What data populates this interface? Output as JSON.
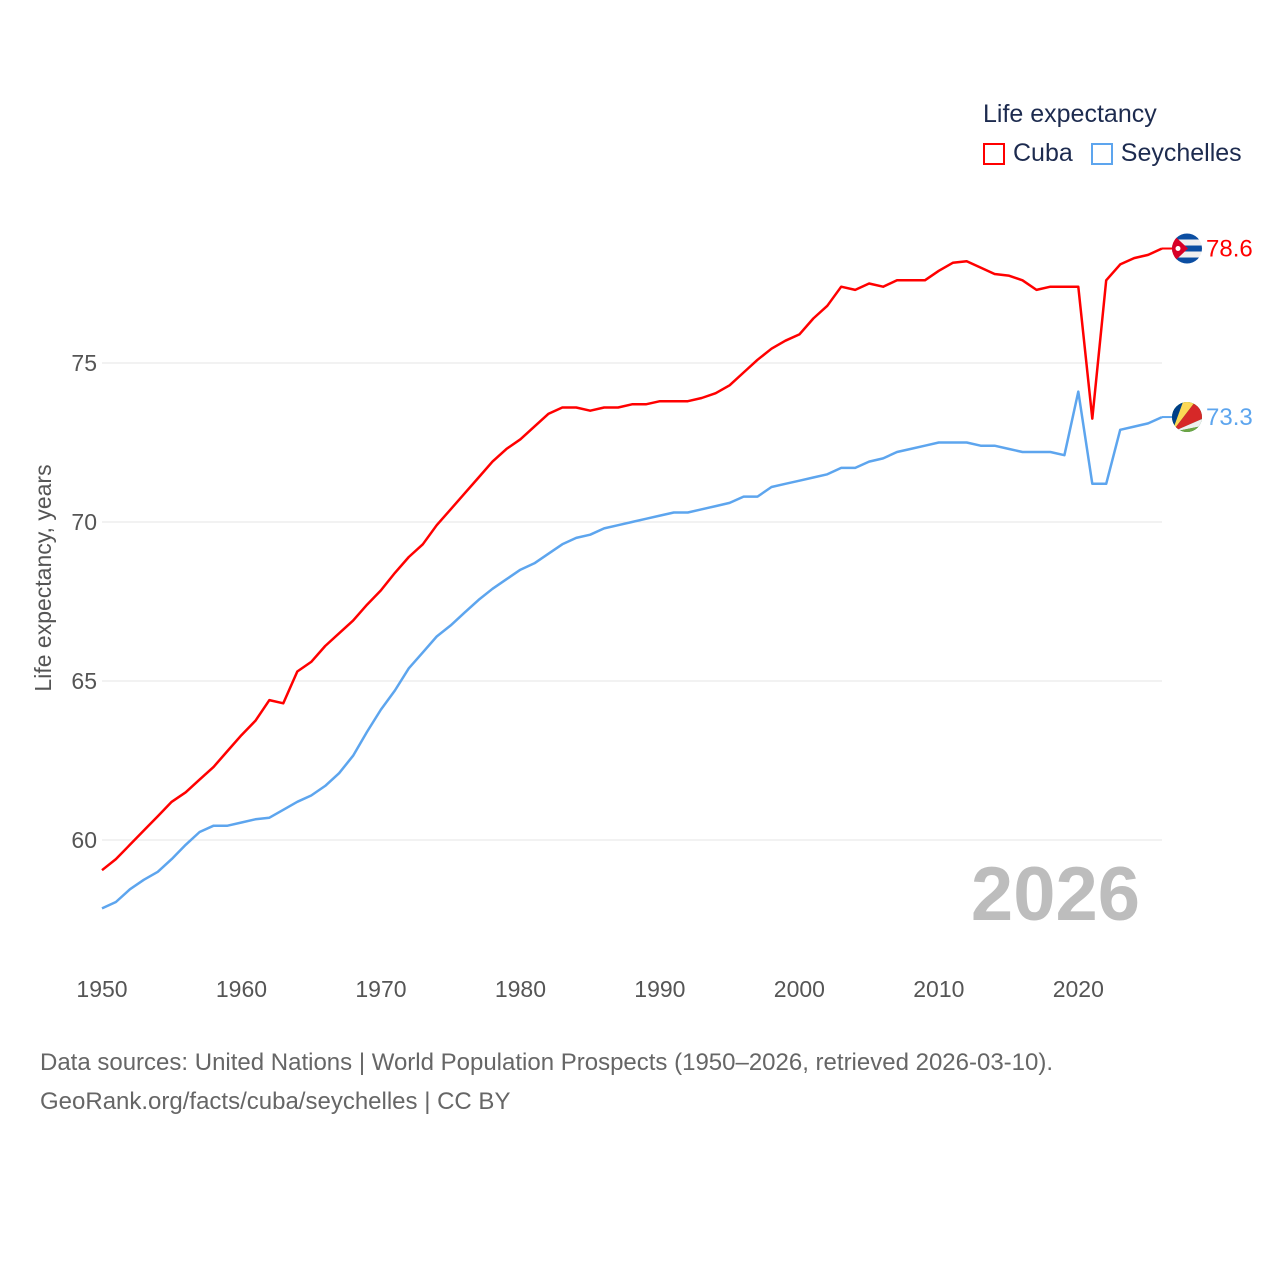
{
  "chart_data": {
    "type": "line",
    "title": "Life expectancy",
    "xlabel": "",
    "ylabel": "Life expectancy, years",
    "xlim": [
      1950,
      2026
    ],
    "ylim": [
      56.5,
      80
    ],
    "x_ticks": [
      1950,
      1960,
      1970,
      1980,
      1990,
      2000,
      2010,
      2020
    ],
    "y_ticks": [
      60,
      65,
      70,
      75
    ],
    "grid": true,
    "legend_position": "top-right",
    "year_label": "2026",
    "x": [
      1950,
      1951,
      1952,
      1953,
      1954,
      1955,
      1956,
      1957,
      1958,
      1959,
      1960,
      1961,
      1962,
      1963,
      1964,
      1965,
      1966,
      1967,
      1968,
      1969,
      1970,
      1971,
      1972,
      1973,
      1974,
      1975,
      1976,
      1977,
      1978,
      1979,
      1980,
      1981,
      1982,
      1983,
      1984,
      1985,
      1986,
      1987,
      1988,
      1989,
      1990,
      1991,
      1992,
      1993,
      1994,
      1995,
      1996,
      1997,
      1998,
      1999,
      2000,
      2001,
      2002,
      2003,
      2004,
      2005,
      2006,
      2007,
      2008,
      2009,
      2010,
      2011,
      2012,
      2013,
      2014,
      2015,
      2016,
      2017,
      2018,
      2019,
      2020,
      2021,
      2022,
      2023,
      2024,
      2025,
      2026
    ],
    "series": [
      {
        "name": "Cuba",
        "color": "#ff0000",
        "end_label": "78.6",
        "values": [
          59.05,
          59.4,
          59.85,
          60.3,
          60.75,
          61.2,
          61.5,
          61.9,
          62.3,
          62.8,
          63.3,
          63.75,
          64.4,
          64.3,
          65.3,
          65.6,
          66.1,
          66.5,
          66.9,
          67.4,
          67.85,
          68.4,
          68.9,
          69.3,
          69.9,
          70.4,
          70.9,
          71.4,
          71.9,
          72.3,
          72.6,
          73.0,
          73.4,
          73.6,
          73.6,
          73.5,
          73.6,
          73.6,
          73.7,
          73.7,
          73.8,
          73.8,
          73.8,
          73.9,
          74.05,
          74.3,
          74.7,
          75.1,
          75.45,
          75.7,
          75.9,
          76.4,
          76.8,
          77.4,
          77.3,
          77.5,
          77.4,
          77.6,
          77.6,
          77.6,
          77.9,
          78.15,
          78.2,
          78.0,
          77.8,
          77.75,
          77.6,
          77.3,
          77.4,
          77.4,
          77.4,
          73.25,
          77.6,
          78.1,
          78.3,
          78.4,
          78.6
        ]
      },
      {
        "name": "Seychelles",
        "color": "#5da5ee",
        "end_label": "73.3",
        "values": [
          57.85,
          58.05,
          58.45,
          58.75,
          59.0,
          59.4,
          59.85,
          60.25,
          60.45,
          60.45,
          60.55,
          60.65,
          60.7,
          60.95,
          61.2,
          61.4,
          61.7,
          62.1,
          62.65,
          63.4,
          64.1,
          64.7,
          65.4,
          65.9,
          66.4,
          66.75,
          67.15,
          67.55,
          67.9,
          68.2,
          68.5,
          68.7,
          69.0,
          69.3,
          69.5,
          69.6,
          69.8,
          69.9,
          70.0,
          70.1,
          70.2,
          70.3,
          70.3,
          70.4,
          70.5,
          70.6,
          70.8,
          70.8,
          71.1,
          71.2,
          71.3,
          71.4,
          71.5,
          71.7,
          71.7,
          71.9,
          72.0,
          72.2,
          72.3,
          72.4,
          72.5,
          72.5,
          72.5,
          72.4,
          72.4,
          72.3,
          72.2,
          72.2,
          72.2,
          72.1,
          74.1,
          71.2,
          71.2,
          72.9,
          73.0,
          73.1,
          73.3
        ]
      }
    ]
  },
  "legend": {
    "title": "Life expectancy",
    "items": [
      "Cuba",
      "Seychelles"
    ]
  },
  "footer": {
    "line1": "Data sources: United Nations | World Population Prospects (1950–2026, retrieved 2026-03-10).",
    "line2": "GeoRank.org/facts/cuba/seychelles | CC BY"
  }
}
